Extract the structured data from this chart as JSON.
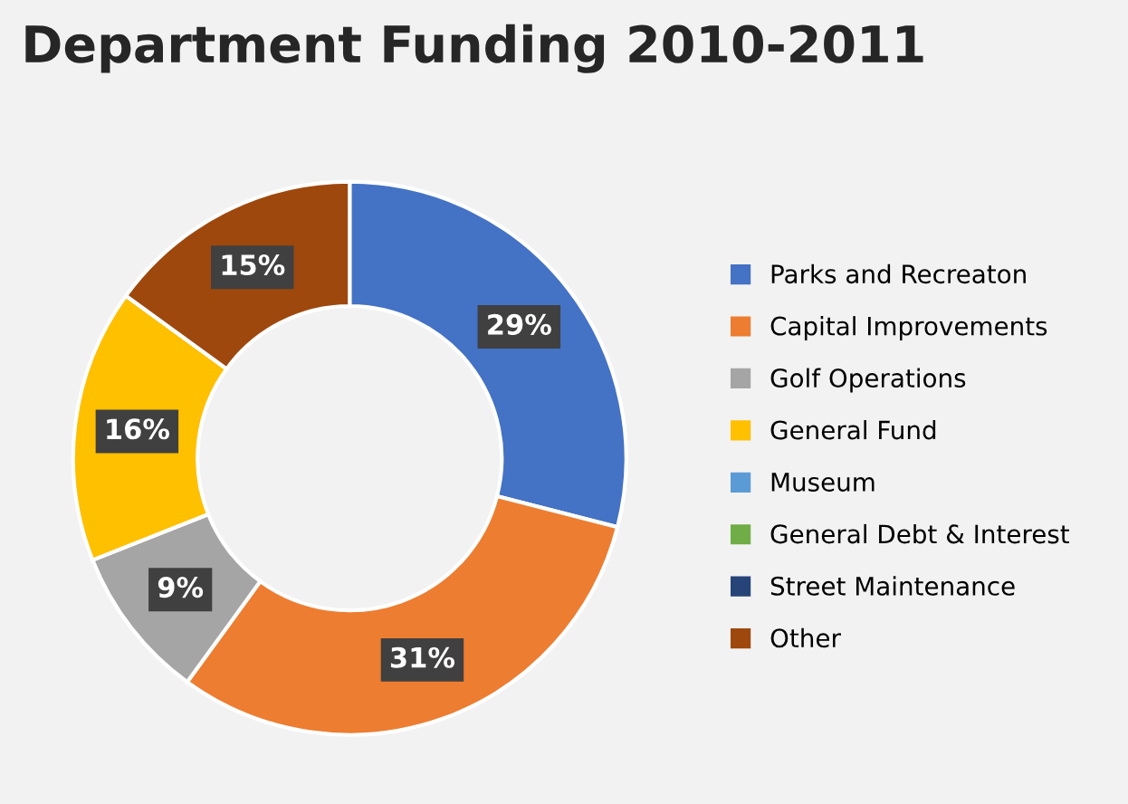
{
  "chart_data": {
    "type": "donut",
    "title": "Department Funding 2010-2011",
    "categories": [
      "Parks and Recreaton",
      "Capital Improvements",
      "Golf Operations",
      "General Fund",
      "Museum",
      "General Debt & Interest",
      "Street Maintenance",
      "Other"
    ],
    "values": [
      29,
      31,
      9,
      16,
      0,
      0,
      0,
      15
    ],
    "colors": [
      "#4472c4",
      "#ed7d31",
      "#a5a5a5",
      "#ffc000",
      "#5b9bd5",
      "#70ad47",
      "#264478",
      "#9e480e"
    ],
    "value_labels": [
      "29%",
      "31%",
      "9%",
      "16%",
      null,
      null,
      null,
      "15%"
    ],
    "legend": "right"
  }
}
